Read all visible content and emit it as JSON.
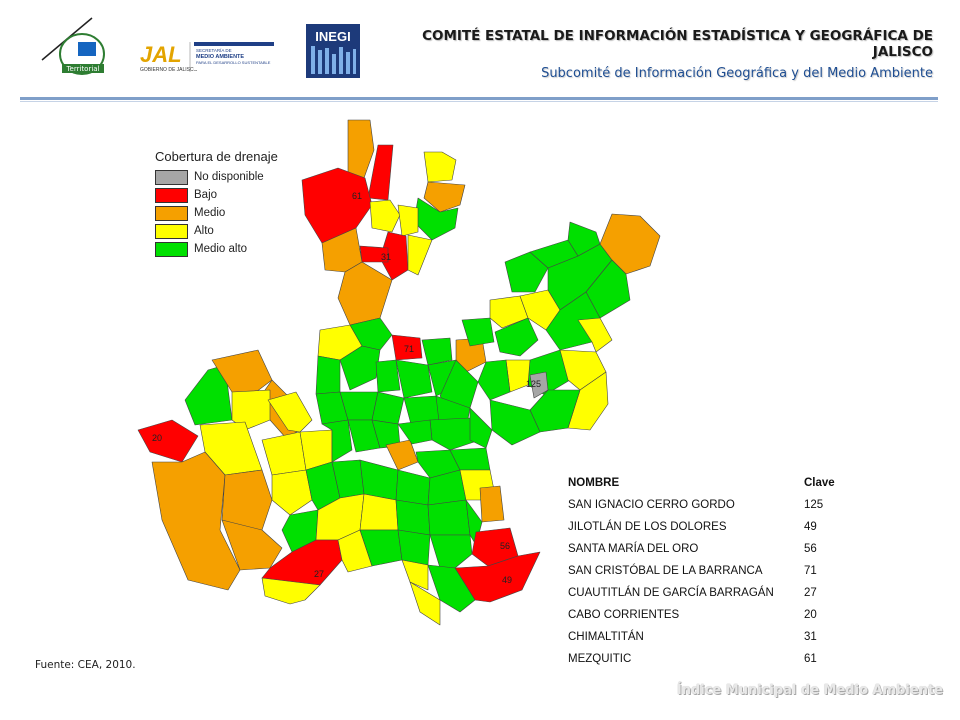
{
  "header": {
    "title": "COMITÉ ESTATAL DE INFORMACIÓN ESTADÍSTICA Y GEOGRÁFICA DE JALISCO",
    "subtitle": "Subcomité de Información Geográfica y del Medio Ambiente"
  },
  "logos": {
    "territorial": "Territorial",
    "jal_brand": "JAL",
    "jal_sub": "GOBIERNO DE JALISCO",
    "semadet_line1": "SECRETARÍA DE",
    "semadet_line2": "MEDIO AMBIENTE",
    "semadet_line3": "PARA EL DESARROLLO SUSTENTABLE",
    "inegi": "INEGI"
  },
  "legend": {
    "title": "Cobertura de drenaje",
    "items": [
      {
        "label": "No disponible",
        "color": "#a6a6a6"
      },
      {
        "label": "Bajo",
        "color": "#ff0000"
      },
      {
        "label": "Medio",
        "color": "#f5a000"
      },
      {
        "label": "Alto",
        "color": "#ffff00"
      },
      {
        "label": "Medio alto",
        "color": "#00e000"
      }
    ]
  },
  "map_labels": [
    "61",
    "31",
    "71",
    "125",
    "20",
    "56",
    "27",
    "49"
  ],
  "table": {
    "headers": [
      "NOMBRE",
      "Clave"
    ],
    "rows": [
      [
        "SAN IGNACIO CERRO GORDO",
        "125"
      ],
      [
        "JILOTLÁN DE LOS DOLORES",
        "49"
      ],
      [
        "SANTA MARÍA DEL ORO",
        "56"
      ],
      [
        "SAN CRISTÓBAL DE LA BARRANCA",
        "71"
      ],
      [
        "CUAUTITLÁN DE GARCÍA BARRAGÁN",
        "27"
      ],
      [
        "CABO CORRIENTES",
        "20"
      ],
      [
        "CHIMALTITÁN",
        "31"
      ],
      [
        "MEZQUITIC",
        "61"
      ]
    ]
  },
  "source": "Fuente: CEA, 2010.",
  "footer": "Índice Municipal de Medio Ambiente"
}
